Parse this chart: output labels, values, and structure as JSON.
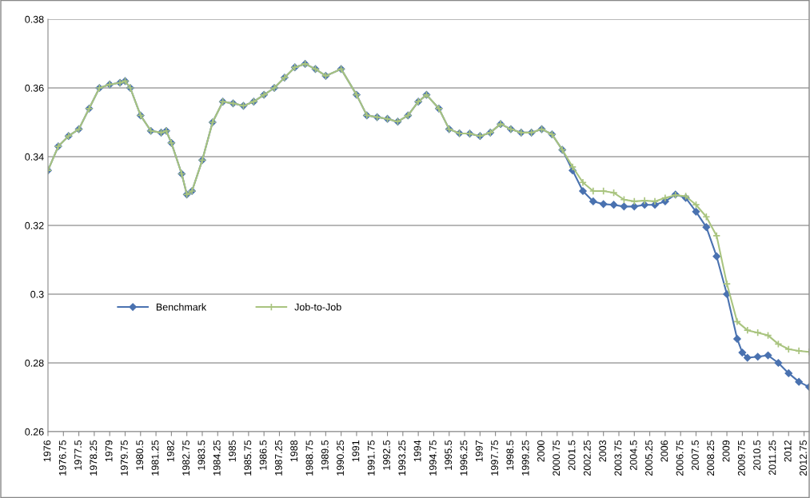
{
  "chart_data": {
    "type": "line",
    "xlim": [
      1976,
      2013
    ],
    "xticks": [
      1976,
      1976.75,
      1977.5,
      1978.25,
      1979,
      1979.75,
      1980.5,
      1981.25,
      1982,
      1982.75,
      1983.5,
      1984.25,
      1985,
      1985.75,
      1986.5,
      1987.25,
      1988,
      1988.75,
      1989.5,
      1990.25,
      1991,
      1991.75,
      1992.5,
      1993.25,
      1994,
      1994.75,
      1995.5,
      1996.25,
      1997,
      1997.75,
      1998.5,
      1999.25,
      2000,
      2000.75,
      2001.5,
      2002.25,
      2003,
      2003.75,
      2004.5,
      2005.25,
      2006,
      2006.75,
      2007.5,
      2008.25,
      2009,
      2009.75,
      2010.5,
      2011.25,
      2012,
      2012.75
    ],
    "ylim": [
      0.26,
      0.38
    ],
    "yticks": [
      0.26,
      0.28,
      0.3,
      0.32,
      0.34,
      0.36,
      0.38
    ],
    "grid": "y",
    "legend": "left",
    "line_style": "solid",
    "series": [
      {
        "name": "Benchmark",
        "color": "#4a72b0",
        "marker": "diamond",
        "x": [
          1976,
          1976.5,
          1977,
          1977.5,
          1978,
          1978.5,
          1979,
          1979.5,
          1979.75,
          1980,
          1980.5,
          1981,
          1981.5,
          1981.75,
          1982,
          1982.5,
          1982.75,
          1983,
          1983.5,
          1984,
          1984.5,
          1985,
          1985.5,
          1986,
          1986.5,
          1987,
          1987.5,
          1988,
          1988.5,
          1989,
          1989.5,
          1990.25,
          1991,
          1991.5,
          1992,
          1992.5,
          1993,
          1993.5,
          1994,
          1994.4,
          1995,
          1995.5,
          1996,
          1996.5,
          1997,
          1997.5,
          1998,
          1998.5,
          1999,
          1999.5,
          2000,
          2000.5,
          2001,
          2001.5,
          2002,
          2002.5,
          2003,
          2003.5,
          2004,
          2004.5,
          2005,
          2005.5,
          2006,
          2006.5,
          2007,
          2007.5,
          2008,
          2008.5,
          2009,
          2009.5,
          2009.75,
          2010,
          2010.5,
          2011,
          2011.5,
          2012,
          2012.5,
          2013
        ],
        "values": [
          0.336,
          0.343,
          0.346,
          0.348,
          0.354,
          0.36,
          0.361,
          0.3615,
          0.362,
          0.36,
          0.352,
          0.3475,
          0.347,
          0.3475,
          0.344,
          0.335,
          0.329,
          0.33,
          0.339,
          0.35,
          0.356,
          0.3555,
          0.3548,
          0.356,
          0.358,
          0.36,
          0.363,
          0.366,
          0.367,
          0.3655,
          0.3635,
          0.3655,
          0.358,
          0.352,
          0.3515,
          0.351,
          0.3502,
          0.352,
          0.356,
          0.358,
          0.354,
          0.348,
          0.3468,
          0.3467,
          0.346,
          0.347,
          0.3495,
          0.348,
          0.347,
          0.347,
          0.348,
          0.3465,
          0.342,
          0.336,
          0.33,
          0.327,
          0.3262,
          0.326,
          0.3255,
          0.3255,
          0.326,
          0.326,
          0.327,
          0.329,
          0.328,
          0.324,
          0.3195,
          0.311,
          0.3,
          0.287,
          0.283,
          0.2815,
          0.2818,
          0.2822,
          0.28,
          0.277,
          0.2745,
          0.273
        ]
      },
      {
        "name": "Job-to-Job",
        "color": "#a9c47f",
        "marker": "cross",
        "x": [
          1976,
          1976.5,
          1977,
          1977.5,
          1978,
          1978.5,
          1979,
          1979.5,
          1979.75,
          1980,
          1980.5,
          1981,
          1981.5,
          1981.75,
          1982,
          1982.5,
          1982.75,
          1983,
          1983.5,
          1984,
          1984.5,
          1985,
          1985.5,
          1986,
          1986.5,
          1987,
          1987.5,
          1988,
          1988.5,
          1989,
          1989.5,
          1990.25,
          1991,
          1991.5,
          1992,
          1992.5,
          1993,
          1993.5,
          1994,
          1994.4,
          1995,
          1995.5,
          1996,
          1996.5,
          1997,
          1997.5,
          1998,
          1998.5,
          1999,
          1999.5,
          2000,
          2000.5,
          2001,
          2001.5,
          2002,
          2002.5,
          2003,
          2003.5,
          2004,
          2004.5,
          2005,
          2005.5,
          2006,
          2006.5,
          2007,
          2007.5,
          2008,
          2008.5,
          2009,
          2009.5,
          2010,
          2010.5,
          2011,
          2011.5,
          2012,
          2012.5,
          2013
        ],
        "values": [
          0.336,
          0.343,
          0.346,
          0.348,
          0.354,
          0.36,
          0.361,
          0.3615,
          0.362,
          0.36,
          0.352,
          0.3475,
          0.347,
          0.3475,
          0.344,
          0.335,
          0.329,
          0.33,
          0.339,
          0.35,
          0.356,
          0.3555,
          0.3548,
          0.356,
          0.358,
          0.36,
          0.363,
          0.366,
          0.367,
          0.3655,
          0.3635,
          0.3655,
          0.358,
          0.352,
          0.3515,
          0.351,
          0.3502,
          0.352,
          0.356,
          0.358,
          0.354,
          0.348,
          0.3468,
          0.3467,
          0.346,
          0.347,
          0.3495,
          0.348,
          0.347,
          0.347,
          0.348,
          0.3465,
          0.342,
          0.337,
          0.3325,
          0.33,
          0.33,
          0.3295,
          0.3275,
          0.327,
          0.3272,
          0.327,
          0.328,
          0.3288,
          0.3285,
          0.326,
          0.3225,
          0.317,
          0.303,
          0.292,
          0.2895,
          0.2888,
          0.288,
          0.2855,
          0.284,
          0.2835,
          0.2832
        ]
      }
    ]
  }
}
